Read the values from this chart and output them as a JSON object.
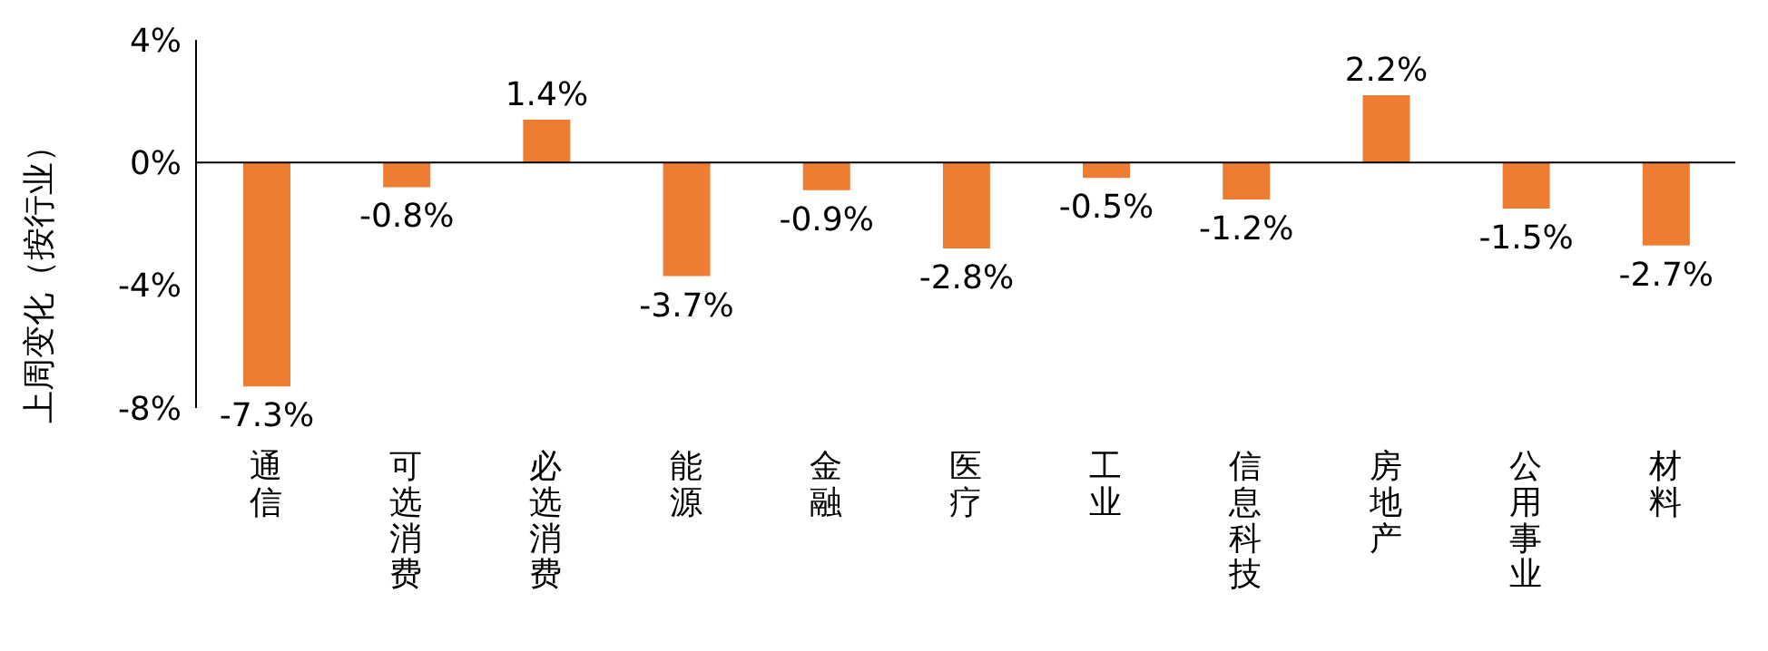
{
  "chart_data": {
    "type": "bar",
    "ylabel": "上周变化（按行业）",
    "categories": [
      "通信",
      "可选消费",
      "必选消费",
      "能源",
      "金融",
      "医疗",
      "工业",
      "信息科技",
      "房地产",
      "公用事业",
      "材料"
    ],
    "values": [
      -7.3,
      -0.8,
      1.4,
      -3.7,
      -0.9,
      -2.8,
      -0.5,
      -1.2,
      2.2,
      -1.5,
      -2.7
    ],
    "value_labels": [
      "-7.3%",
      "-0.8%",
      "1.4%",
      "-3.7%",
      "-0.9%",
      "-2.8%",
      "-0.5%",
      "-1.2%",
      "2.2%",
      "-1.5%",
      "-2.7%"
    ],
    "color": "#ed7d31",
    "ylim": [
      -8,
      4
    ],
    "yticks": [
      {
        "value": -8,
        "label": "-8%"
      },
      {
        "value": -4,
        "label": "-4%"
      },
      {
        "value": 0,
        "label": "0%"
      },
      {
        "value": 4,
        "label": "4%"
      }
    ],
    "legend": false
  }
}
